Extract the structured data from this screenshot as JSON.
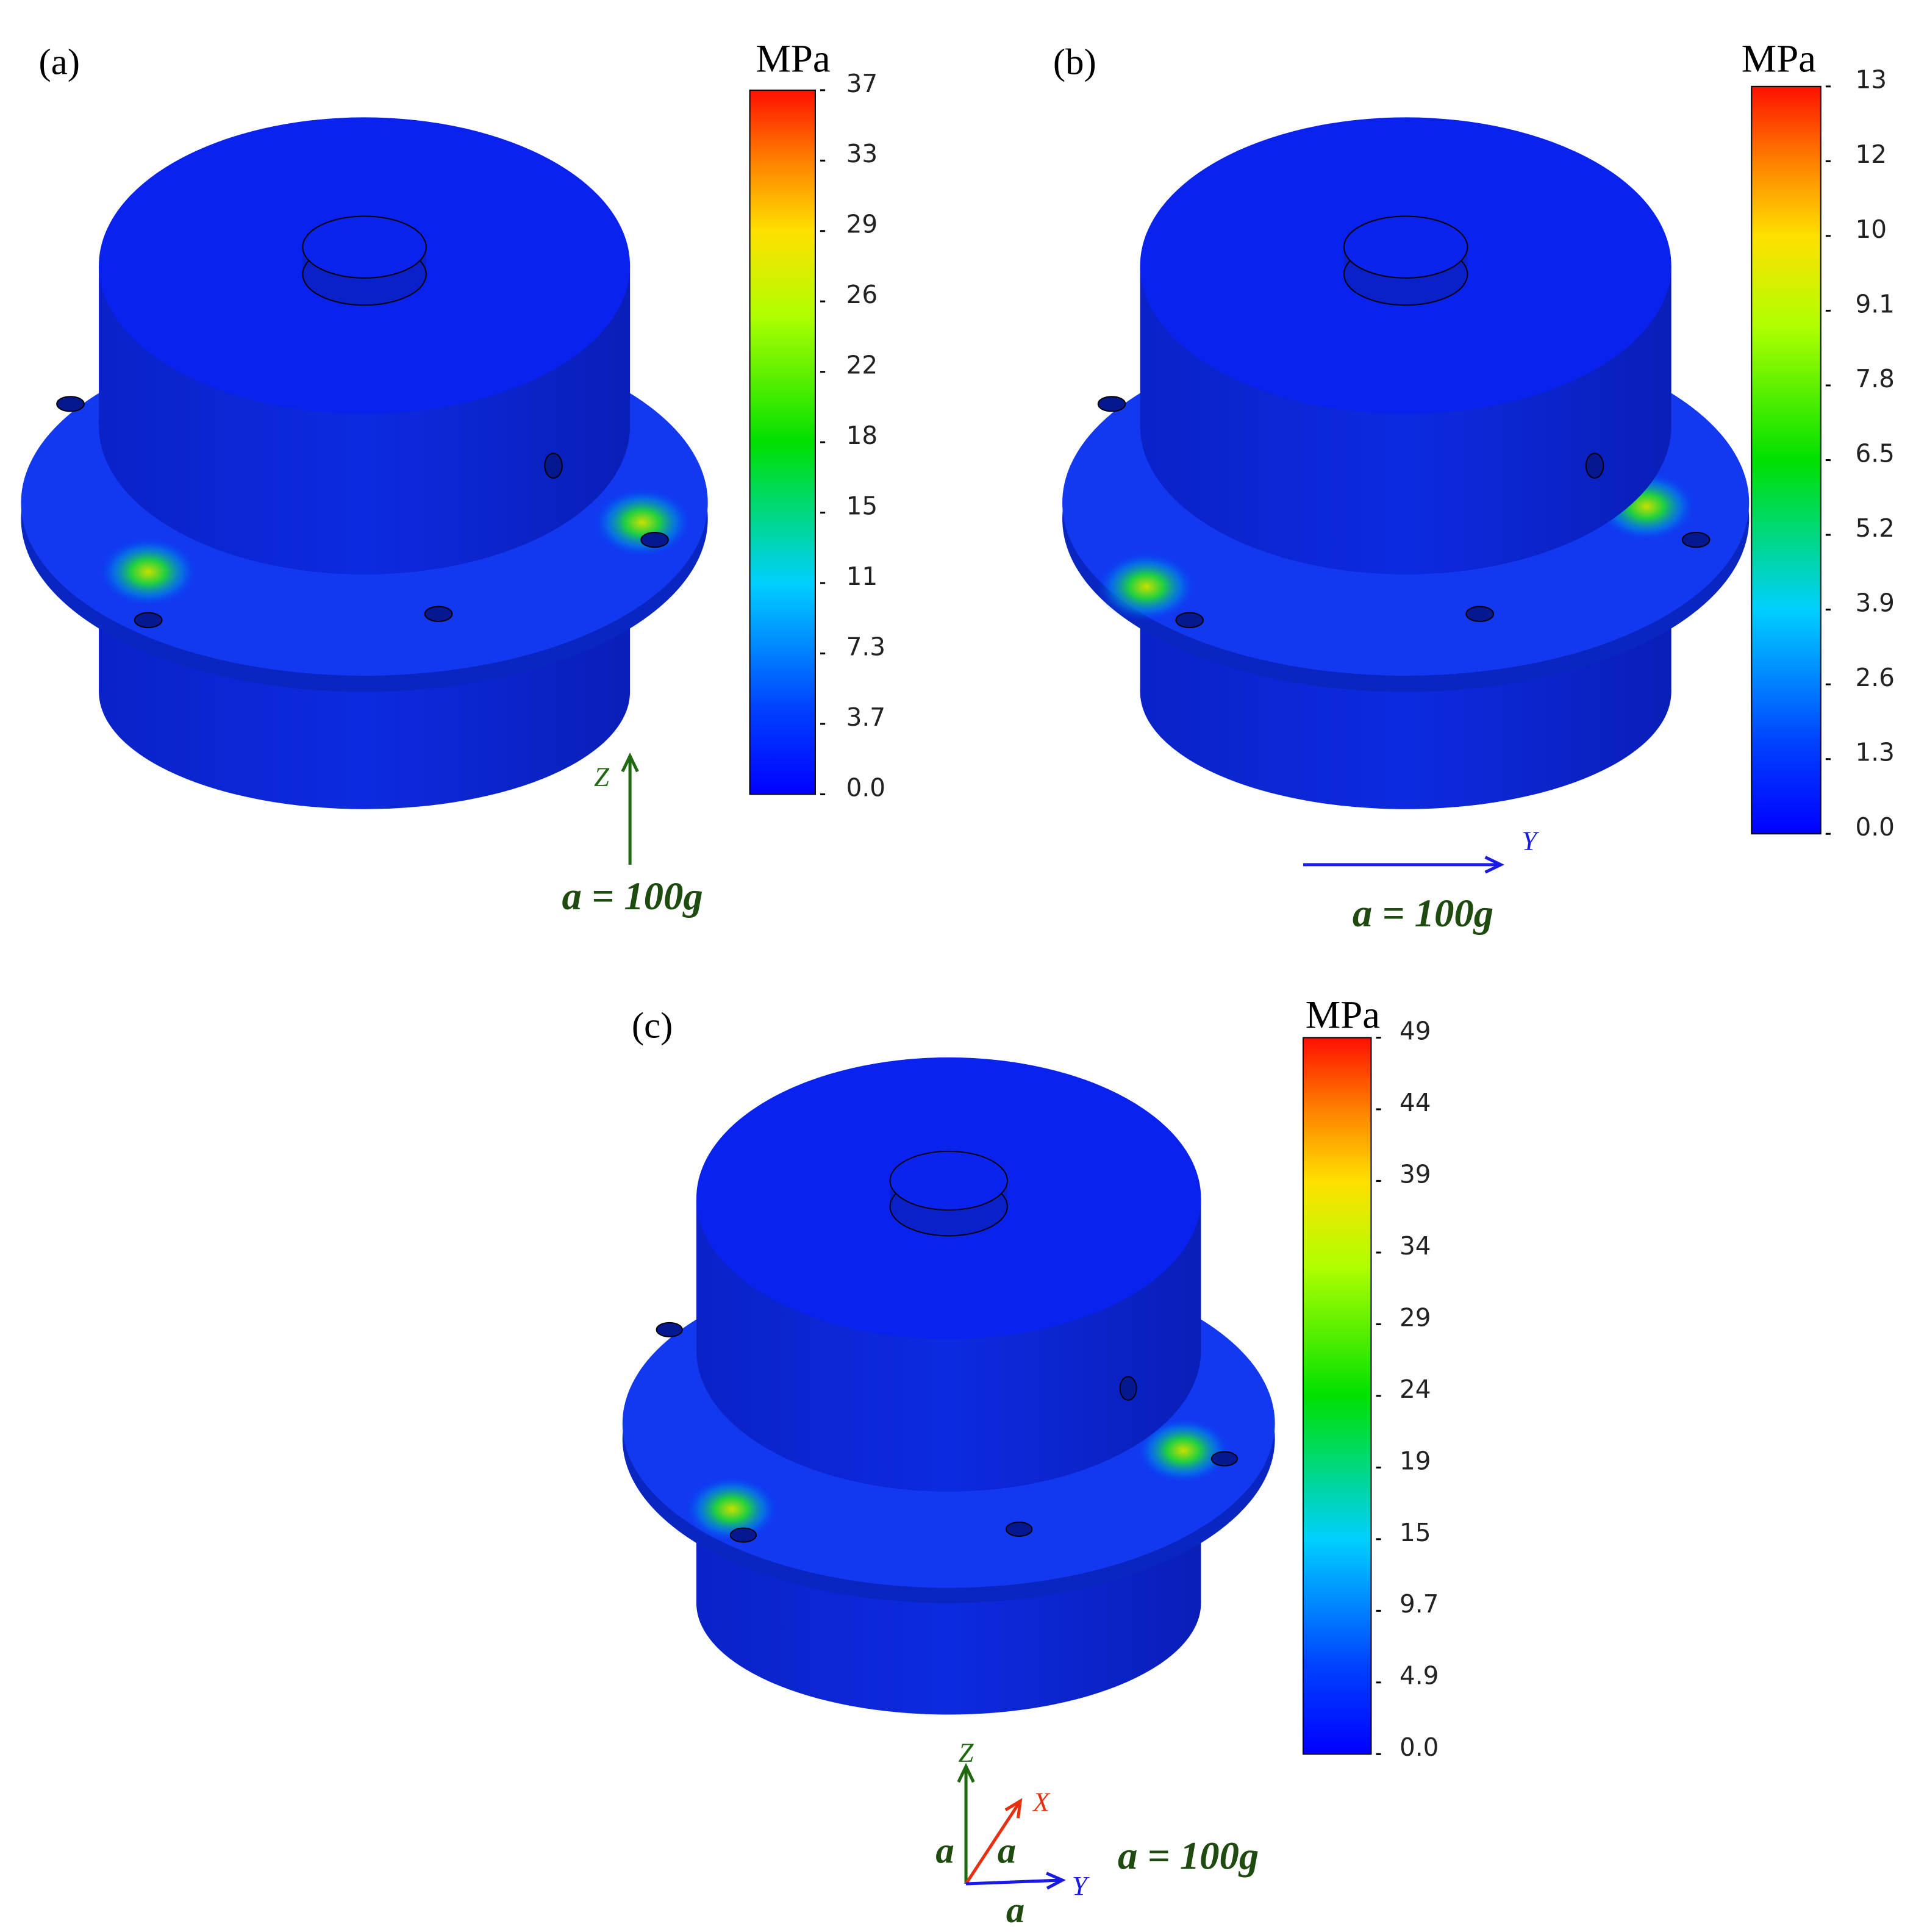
{
  "panels": [
    {
      "label": "(a)",
      "unit": "MPa",
      "scale": [
        "37",
        "33",
        "29",
        "26",
        "22",
        "18",
        "15",
        "11",
        "7.3",
        "3.7",
        "0.0"
      ],
      "axes": [
        {
          "label": "Z"
        }
      ],
      "load": "a = 100g"
    },
    {
      "label": "(b)",
      "unit": "MPa",
      "scale": [
        "13",
        "12",
        "10",
        "9.1",
        "7.8",
        "6.5",
        "5.2",
        "3.9",
        "2.6",
        "1.3",
        "0.0"
      ],
      "axes": [
        {
          "label": "Y"
        }
      ],
      "load": "a = 100g"
    },
    {
      "label": "(c)",
      "unit": "MPa",
      "scale": [
        "49",
        "44",
        "39",
        "34",
        "29",
        "24",
        "19",
        "15",
        "9.7",
        "4.9",
        "0.0"
      ],
      "axes": [
        {
          "label": "Z",
          "magnitude": "a"
        },
        {
          "label": "X",
          "magnitude": "a"
        },
        {
          "label": "Y",
          "magnitude": "a"
        }
      ],
      "load": "a = 100g"
    }
  ]
}
